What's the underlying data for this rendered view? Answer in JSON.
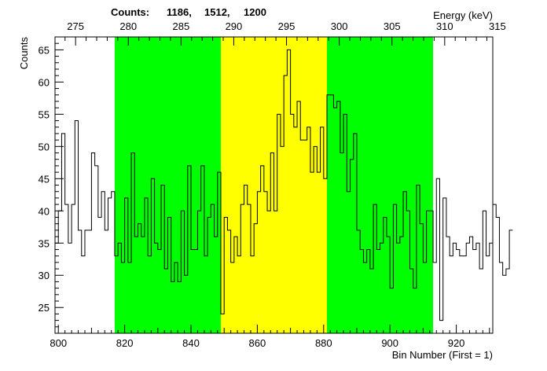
{
  "chart_data": {
    "type": "histogram",
    "counts_label": "Counts:",
    "counts_values": [
      "1186,",
      "1512,",
      "1200"
    ],
    "ylabel": "Counts",
    "xlabel": "Bin Number (First = 1)",
    "x2label": "Energy (keV)",
    "xlim": [
      799,
      931
    ],
    "ylim": [
      21,
      67
    ],
    "x_ticks": [
      800,
      820,
      840,
      860,
      880,
      900,
      920
    ],
    "y_ticks": [
      25,
      30,
      35,
      40,
      45,
      50,
      55,
      60,
      65
    ],
    "x2_ticks": [
      {
        "bin": 805.2,
        "label": "275"
      },
      {
        "bin": 821.1,
        "label": "280"
      },
      {
        "bin": 837.0,
        "label": "285"
      },
      {
        "bin": 852.9,
        "label": "290"
      },
      {
        "bin": 868.8,
        "label": "295"
      },
      {
        "bin": 884.7,
        "label": "300"
      },
      {
        "bin": 900.6,
        "label": "305"
      },
      {
        "bin": 916.5,
        "label": "310"
      },
      {
        "bin": 932.4,
        "label": "315"
      }
    ],
    "regions": [
      {
        "name": "left-background",
        "start": 817,
        "end": 849,
        "color": "#00ff00"
      },
      {
        "name": "peak",
        "start": 849,
        "end": 881,
        "color": "#ffff00"
      },
      {
        "name": "right-background",
        "start": 881,
        "end": 913,
        "color": "#00ff00"
      }
    ],
    "bin_start": 799,
    "bin_width": 1,
    "values": [
      35,
      40,
      52,
      41,
      35,
      41,
      54,
      37,
      33,
      37,
      37,
      49,
      47,
      39,
      43,
      37,
      42,
      43,
      33,
      35,
      32,
      42,
      32,
      49,
      36,
      38,
      36,
      42,
      33,
      45,
      35,
      34,
      44,
      31,
      39,
      29,
      32,
      29,
      40,
      30,
      47,
      34,
      34,
      40,
      47,
      33,
      39,
      41,
      36,
      46,
      24,
      39,
      37,
      32,
      36,
      33,
      41,
      44,
      41,
      33,
      38,
      43,
      47,
      43,
      40,
      49,
      40,
      55,
      50,
      61,
      65,
      55,
      53,
      57,
      51,
      51,
      53,
      46,
      50,
      46,
      53,
      45,
      58,
      58,
      56,
      57,
      49,
      55,
      43,
      48,
      52,
      37,
      34,
      32,
      34,
      31,
      41,
      34,
      35,
      39,
      36,
      28,
      41,
      35,
      36,
      43,
      40,
      31,
      28,
      44,
      38,
      32,
      40,
      40,
      32,
      45,
      23,
      42,
      36,
      33,
      35,
      34,
      33,
      33,
      35,
      36,
      34,
      35,
      31,
      40,
      33,
      35,
      41,
      39,
      32,
      30,
      31,
      37
    ]
  }
}
